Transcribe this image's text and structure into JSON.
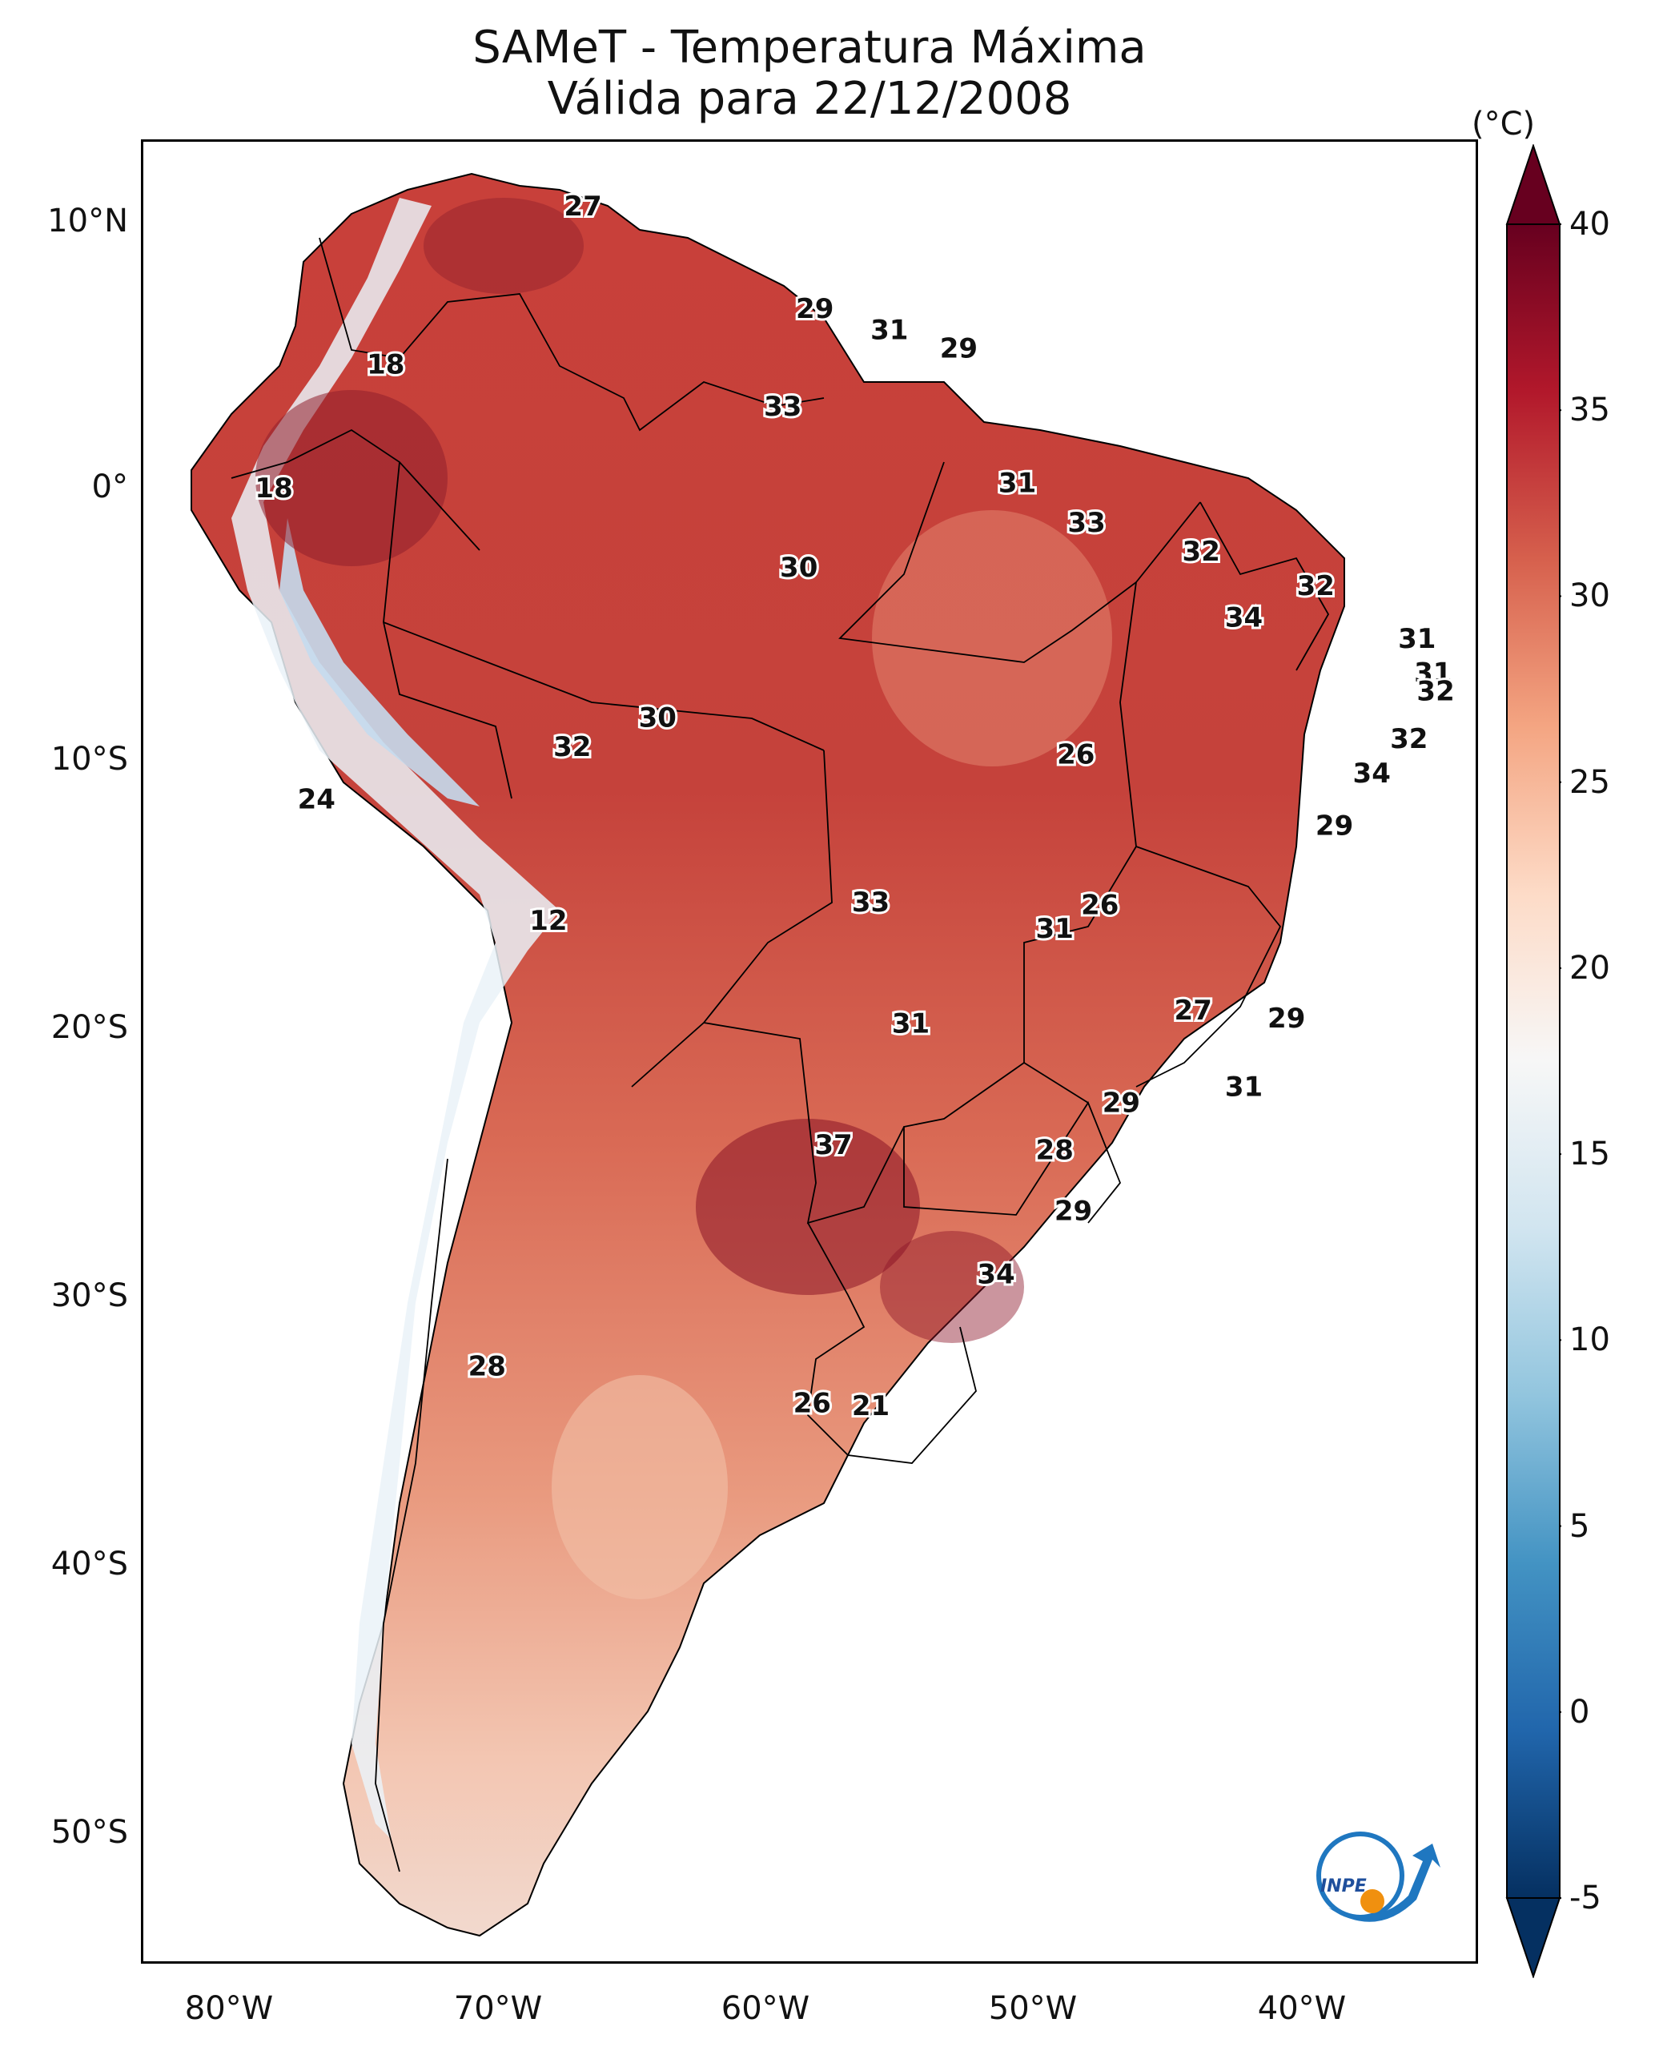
{
  "title": {
    "line1": "SAMeT - Temperatura Máxima",
    "line2": "Válida para 22/12/2008"
  },
  "map": {
    "lat_ticks": [
      "10°N",
      "0°",
      "10°S",
      "20°S",
      "30°S",
      "40°S",
      "50°S"
    ],
    "lon_ticks": [
      "80°W",
      "70°W",
      "60°W",
      "50°W",
      "40°W"
    ],
    "lat_values": [
      10,
      0,
      -10,
      -20,
      -30,
      -40,
      -50
    ],
    "lon_values": [
      -80,
      -70,
      -60,
      -50,
      -40
    ],
    "extent": {
      "lon_min": -83,
      "lon_max": -33,
      "lat_min": -56,
      "lat_max": 13
    },
    "temperature_labels": [
      {
        "v": "27",
        "lon": -66.5,
        "lat": 10.5
      },
      {
        "v": "29",
        "lon": -57.8,
        "lat": 6.6
      },
      {
        "v": "31",
        "lon": -55.0,
        "lat": 5.8
      },
      {
        "v": "29",
        "lon": -52.4,
        "lat": 5.1
      },
      {
        "v": "18",
        "lon": -73.9,
        "lat": 4.5
      },
      {
        "v": "33",
        "lon": -59.0,
        "lat": 2.9
      },
      {
        "v": "18",
        "lon": -78.1,
        "lat": -0.2
      },
      {
        "v": "31",
        "lon": -50.2,
        "lat": 0.0
      },
      {
        "v": "33",
        "lon": -47.6,
        "lat": -1.5
      },
      {
        "v": "30",
        "lon": -58.4,
        "lat": -3.2
      },
      {
        "v": "32",
        "lon": -43.3,
        "lat": -2.6
      },
      {
        "v": "32",
        "lon": -39.0,
        "lat": -3.9
      },
      {
        "v": "34",
        "lon": -41.7,
        "lat": -5.1
      },
      {
        "v": "31",
        "lon": -35.2,
        "lat": -5.9
      },
      {
        "v": "31",
        "lon": -34.6,
        "lat": -7.2
      },
      {
        "v": "32",
        "lon": -34.5,
        "lat": -7.9
      },
      {
        "v": "30",
        "lon": -63.7,
        "lat": -8.9
      },
      {
        "v": "32",
        "lon": -66.9,
        "lat": -10.0
      },
      {
        "v": "26",
        "lon": -48.0,
        "lat": -10.3
      },
      {
        "v": "32",
        "lon": -35.5,
        "lat": -9.7
      },
      {
        "v": "34",
        "lon": -36.9,
        "lat": -11.0
      },
      {
        "v": "24",
        "lon": -76.5,
        "lat": -12.0
      },
      {
        "v": "29",
        "lon": -38.3,
        "lat": -13.0
      },
      {
        "v": "33",
        "lon": -55.7,
        "lat": -15.9
      },
      {
        "v": "26",
        "lon": -47.1,
        "lat": -16.0
      },
      {
        "v": "31",
        "lon": -48.8,
        "lat": -16.9
      },
      {
        "v": "12",
        "lon": -67.8,
        "lat": -16.6
      },
      {
        "v": "27",
        "lon": -43.6,
        "lat": -20.0
      },
      {
        "v": "31",
        "lon": -54.2,
        "lat": -20.5
      },
      {
        "v": "29",
        "lon": -40.1,
        "lat": -20.3
      },
      {
        "v": "31",
        "lon": -41.7,
        "lat": -22.9
      },
      {
        "v": "29",
        "lon": -46.3,
        "lat": -23.5
      },
      {
        "v": "37",
        "lon": -57.1,
        "lat": -25.1
      },
      {
        "v": "28",
        "lon": -48.8,
        "lat": -25.3
      },
      {
        "v": "29",
        "lon": -48.1,
        "lat": -27.6
      },
      {
        "v": "34",
        "lon": -51.0,
        "lat": -30.0
      },
      {
        "v": "28",
        "lon": -70.1,
        "lat": -33.5
      },
      {
        "v": "26",
        "lon": -57.9,
        "lat": -34.9
      },
      {
        "v": "21",
        "lon": -55.7,
        "lat": -35.0
      }
    ]
  },
  "colorbar": {
    "unit": "(°C)",
    "ticks": [
      "40",
      "35",
      "30",
      "25",
      "20",
      "15",
      "10",
      "5",
      "0",
      "-5"
    ],
    "tick_values": [
      40,
      35,
      30,
      25,
      20,
      15,
      10,
      5,
      0,
      -5
    ],
    "range": [
      -5,
      40
    ],
    "colors_low_to_high": [
      "#053061",
      "#2166ac",
      "#4393c3",
      "#92c5de",
      "#d1e5f0",
      "#f7f7f7",
      "#fddbc7",
      "#f4a582",
      "#d6604d",
      "#b2182b",
      "#67001f"
    ]
  },
  "logo": {
    "text": "INPE",
    "primary_color": "#1f77c0",
    "accent_color": "#f0900f"
  }
}
